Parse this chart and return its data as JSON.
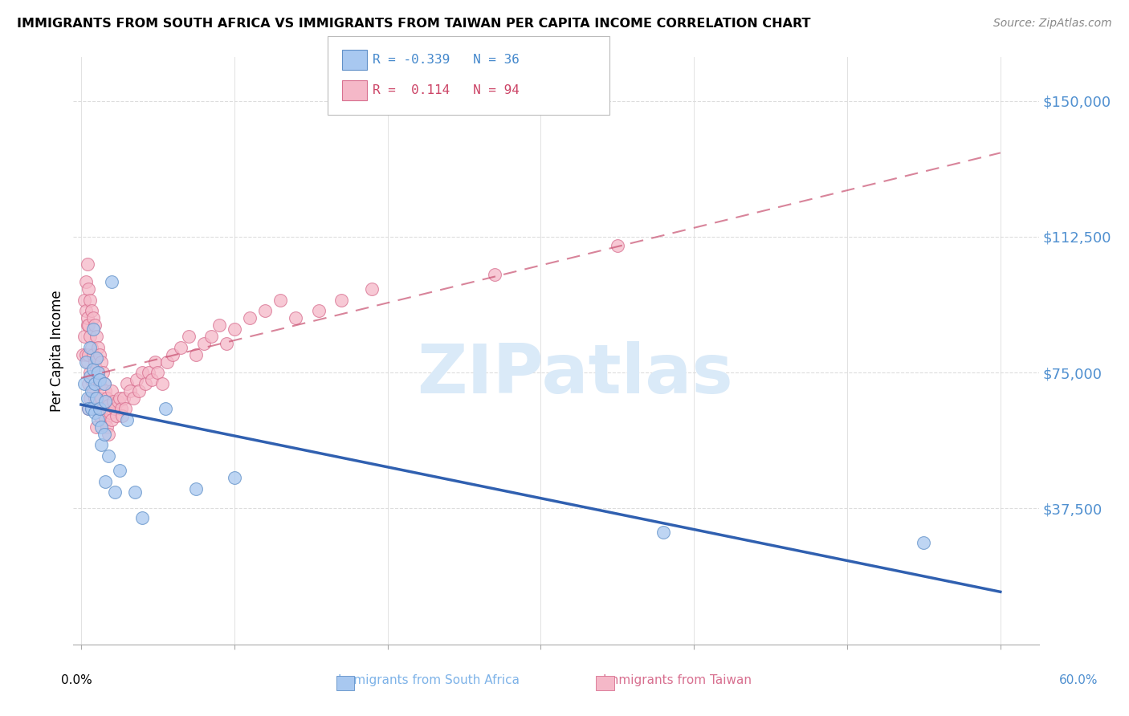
{
  "title": "IMMIGRANTS FROM SOUTH AFRICA VS IMMIGRANTS FROM TAIWAN PER CAPITA INCOME CORRELATION CHART",
  "source": "Source: ZipAtlas.com",
  "ylabel": "Per Capita Income",
  "ytick_labels": [
    "$37,500",
    "$75,000",
    "$112,500",
    "$150,000"
  ],
  "ytick_values": [
    37500,
    75000,
    112500,
    150000
  ],
  "ylim": [
    0,
    162000
  ],
  "xlim_min": -0.005,
  "xlim_max": 0.625,
  "color_blue": "#a8c8f0",
  "color_pink": "#f5b8c8",
  "edge_blue": "#6090c8",
  "edge_pink": "#d87090",
  "line_blue_color": "#3060b0",
  "line_pink_color": "#c85070",
  "watermark_color": "#daeaf8",
  "watermark_text": "ZIPatlas",
  "south_africa_x": [
    0.002,
    0.003,
    0.004,
    0.005,
    0.006,
    0.006,
    0.007,
    0.007,
    0.008,
    0.008,
    0.009,
    0.009,
    0.01,
    0.01,
    0.011,
    0.011,
    0.012,
    0.012,
    0.013,
    0.013,
    0.015,
    0.015,
    0.016,
    0.016,
    0.018,
    0.02,
    0.022,
    0.025,
    0.03,
    0.035,
    0.04,
    0.055,
    0.075,
    0.1,
    0.38,
    0.55
  ],
  "south_africa_y": [
    72000,
    78000,
    68000,
    65000,
    82000,
    74000,
    70000,
    65000,
    87000,
    76000,
    72000,
    64000,
    79000,
    68000,
    75000,
    62000,
    73000,
    65000,
    60000,
    55000,
    72000,
    58000,
    45000,
    67000,
    52000,
    100000,
    42000,
    48000,
    62000,
    42000,
    35000,
    65000,
    43000,
    46000,
    31000,
    28000
  ],
  "taiwan_x": [
    0.001,
    0.002,
    0.002,
    0.003,
    0.003,
    0.003,
    0.004,
    0.004,
    0.004,
    0.004,
    0.005,
    0.005,
    0.005,
    0.005,
    0.005,
    0.006,
    0.006,
    0.006,
    0.006,
    0.007,
    0.007,
    0.007,
    0.007,
    0.008,
    0.008,
    0.008,
    0.009,
    0.009,
    0.009,
    0.01,
    0.01,
    0.01,
    0.01,
    0.011,
    0.011,
    0.011,
    0.012,
    0.012,
    0.012,
    0.013,
    0.013,
    0.014,
    0.014,
    0.015,
    0.015,
    0.016,
    0.016,
    0.017,
    0.017,
    0.018,
    0.018,
    0.019,
    0.02,
    0.02,
    0.021,
    0.022,
    0.023,
    0.024,
    0.025,
    0.026,
    0.027,
    0.028,
    0.029,
    0.03,
    0.032,
    0.034,
    0.036,
    0.038,
    0.04,
    0.042,
    0.044,
    0.046,
    0.048,
    0.05,
    0.053,
    0.056,
    0.06,
    0.065,
    0.07,
    0.075,
    0.08,
    0.085,
    0.09,
    0.095,
    0.1,
    0.11,
    0.12,
    0.13,
    0.14,
    0.155,
    0.17,
    0.19,
    0.27,
    0.35
  ],
  "taiwan_y": [
    80000,
    95000,
    85000,
    100000,
    92000,
    80000,
    88000,
    105000,
    90000,
    78000,
    98000,
    88000,
    80000,
    72000,
    65000,
    95000,
    85000,
    75000,
    68000,
    92000,
    82000,
    73000,
    65000,
    90000,
    80000,
    70000,
    88000,
    78000,
    68000,
    85000,
    76000,
    68000,
    60000,
    82000,
    74000,
    65000,
    80000,
    72000,
    63000,
    78000,
    68000,
    75000,
    65000,
    72000,
    63000,
    70000,
    62000,
    68000,
    60000,
    66000,
    58000,
    64000,
    70000,
    62000,
    67000,
    65000,
    63000,
    67000,
    68000,
    65000,
    63000,
    68000,
    65000,
    72000,
    70000,
    68000,
    73000,
    70000,
    75000,
    72000,
    75000,
    73000,
    78000,
    75000,
    72000,
    78000,
    80000,
    82000,
    85000,
    80000,
    83000,
    85000,
    88000,
    83000,
    87000,
    90000,
    92000,
    95000,
    90000,
    92000,
    95000,
    98000,
    102000,
    110000
  ]
}
